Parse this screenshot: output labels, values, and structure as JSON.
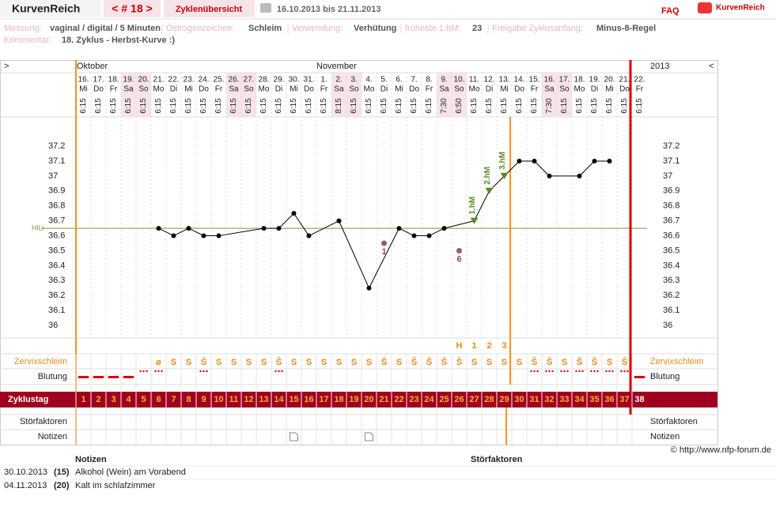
{
  "header": {
    "brand": "KurvenReich",
    "cycle_nav": "< # 18 >",
    "overview": "Zyklenübersicht",
    "range": "16.10.2013 bis 21.11.2013",
    "faq": "FAQ",
    "logo": "KurvenReich"
  },
  "meta": [
    {
      "label": "Messung:",
      "value": "vaginal / digital / 5 Minuten"
    },
    {
      "label": "Östrogenzeichen:",
      "value": "Schleim"
    },
    {
      "label": "Verwendung:",
      "value": "Verhütung"
    },
    {
      "label": "früheste 1.hM:",
      "value": "23"
    },
    {
      "label": "Freigabe Zyklusanfang:",
      "value": "Minus-8-Regel"
    }
  ],
  "comment": {
    "label": "Kommentar:",
    "value": "18. Zyklus - Herbst-Kurve :)"
  },
  "chart": {
    "nav_left": ">",
    "nav_right": "<",
    "months": [
      "Oktober",
      "November"
    ],
    "year": "2013",
    "days": [
      "16.",
      "17.",
      "18.",
      "19.",
      "20.",
      "21.",
      "22.",
      "23.",
      "24.",
      "25.",
      "26.",
      "27.",
      "28.",
      "29.",
      "30.",
      "31.",
      "1.",
      "2.",
      "3.",
      "4.",
      "5.",
      "6.",
      "7.",
      "8.",
      "9.",
      "10.",
      "11.",
      "12.",
      "13.",
      "14.",
      "15.",
      "16.",
      "17.",
      "18.",
      "19.",
      "20.",
      "21.",
      "22."
    ],
    "weekdays": [
      "Mi",
      "Do",
      "Fr",
      "Sa",
      "So",
      "Mo",
      "Di",
      "Mi",
      "Do",
      "Fr",
      "Sa",
      "So",
      "Mo",
      "Di",
      "Mi",
      "Do",
      "Fr",
      "Sa",
      "So",
      "Mo",
      "Di",
      "Mi",
      "Do",
      "Fr",
      "Sa",
      "So",
      "Mo",
      "Di",
      "Mi",
      "Do",
      "Fr",
      "Sa",
      "So",
      "Mo",
      "Di",
      "Mi",
      "Do",
      "Fr"
    ],
    "times": [
      "6:15",
      "6:15",
      "6:15",
      "6:15",
      "6:15",
      "6:15",
      "6:15",
      "6:15",
      "6:15",
      "6:15",
      "6:15",
      "6:15",
      "6:15",
      "6:15",
      "6:15",
      "6:15",
      "6:15",
      "8:15",
      "6:15",
      "6:15",
      "6:15",
      "6:15",
      "6:15",
      "6:15",
      "7:30",
      "6:50",
      "6:15",
      "6:15",
      "6:15",
      "6:15",
      "6:15",
      "7:30",
      "6:15",
      "6:15",
      "6:15",
      "6:15",
      "6:15",
      "6:15"
    ],
    "temperatures": [
      null,
      null,
      null,
      null,
      null,
      36.65,
      36.6,
      36.65,
      36.6,
      36.6,
      null,
      null,
      36.65,
      36.65,
      36.75,
      36.6,
      null,
      36.7,
      null,
      36.25,
      36.55,
      36.65,
      36.6,
      36.6,
      36.65,
      36.5,
      36.7,
      36.9,
      37.0,
      37.1,
      37.1,
      37.0,
      null,
      37.0,
      37.1,
      37.1,
      null,
      null
    ],
    "excluded_labels": [
      null,
      null,
      null,
      null,
      null,
      null,
      null,
      null,
      null,
      null,
      null,
      null,
      null,
      null,
      null,
      null,
      null,
      null,
      null,
      null,
      "1",
      null,
      null,
      null,
      null,
      "6",
      null,
      null,
      null,
      null,
      null,
      null,
      null,
      null,
      null,
      null,
      null,
      null
    ],
    "hm_labels": [
      null,
      null,
      null,
      null,
      null,
      null,
      null,
      null,
      null,
      null,
      null,
      null,
      null,
      null,
      null,
      null,
      null,
      null,
      null,
      null,
      null,
      null,
      null,
      null,
      null,
      null,
      "1.hM",
      "2.hM",
      "3.hM",
      null,
      null,
      null,
      null,
      null,
      null,
      null,
      null,
      null
    ],
    "hili": {
      "label": "HiLi",
      "value": 36.65
    },
    "ylim": [
      35.9,
      37.4
    ],
    "yticks": [
      36,
      36.1,
      36.2,
      36.3,
      36.4,
      36.5,
      36.6,
      36.7,
      36.8,
      36.9,
      37,
      37.1,
      37.2
    ],
    "peak_labels": [
      null,
      null,
      null,
      null,
      null,
      null,
      null,
      null,
      null,
      null,
      null,
      null,
      null,
      null,
      null,
      null,
      null,
      null,
      null,
      null,
      null,
      null,
      null,
      null,
      null,
      "H",
      "1",
      "2",
      "3",
      null,
      null,
      null,
      null,
      null,
      null,
      null,
      null,
      null
    ],
    "mucus": [
      null,
      null,
      null,
      null,
      null,
      "ø",
      "S",
      "S",
      "Ŝ",
      "S",
      "S",
      "S",
      "S",
      "Ŝ",
      "S",
      "S",
      "S",
      "S",
      "S",
      "S",
      "Ŝ",
      "S",
      "Ŝ",
      "Ŝ",
      "Ŝ",
      "Ŝ",
      "S",
      "S",
      "S",
      "S",
      "Ŝ",
      "Ŝ",
      "S",
      "Ŝ",
      "Ŝ",
      "S",
      "Ŝ",
      null
    ],
    "bleeding": [
      3,
      3,
      3,
      3,
      1,
      1,
      null,
      null,
      1,
      null,
      null,
      null,
      null,
      1,
      null,
      null,
      null,
      null,
      null,
      null,
      null,
      null,
      null,
      null,
      null,
      null,
      null,
      null,
      null,
      null,
      1,
      1,
      1,
      1,
      1,
      1,
      1,
      3
    ],
    "cycle_days": [
      1,
      2,
      3,
      4,
      5,
      6,
      7,
      8,
      9,
      10,
      11,
      12,
      13,
      14,
      15,
      16,
      17,
      18,
      19,
      20,
      21,
      22,
      23,
      24,
      25,
      26,
      27,
      28,
      29,
      30,
      31,
      32,
      33,
      34,
      35,
      36,
      37,
      38
    ],
    "row_labels": {
      "mucus": "Zervixschleim",
      "bleeding": "Blutung",
      "cycle_day": "Zyklustag",
      "disturbances": "Störfaktoren",
      "notes": "Notizen"
    }
  },
  "copyright": "© http://www.nfp-forum.de",
  "notes_table": {
    "headers": [
      "Notizen",
      "Störfaktoren"
    ],
    "rows": [
      [
        "30.10.2013",
        "(15)",
        "Alkohol (Wein) am Vorabend"
      ],
      [
        "04.11.2013",
        "(20)",
        "Kalt im schlafzimmer"
      ]
    ]
  }
}
